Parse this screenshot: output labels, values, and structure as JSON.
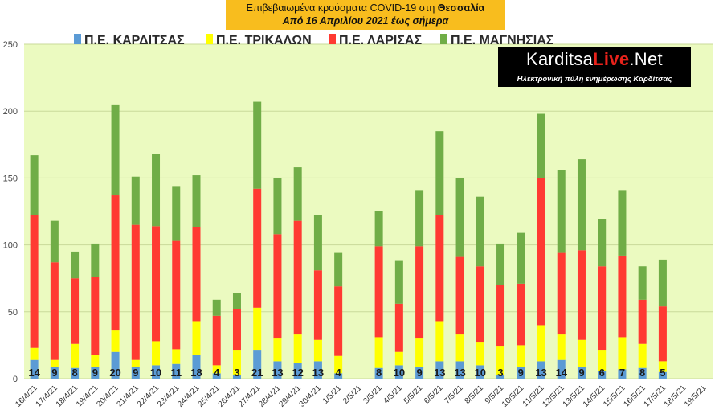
{
  "title": {
    "line1_prefix": "Επιβεβαιωμένα κρούσματα COVID-19 στη",
    "line1_region": "Θεσσαλία",
    "line2": "Από 16 Απριλίου 2021 έως σήμερα"
  },
  "logo": {
    "brand_a": "Karditsa",
    "brand_b": "Live",
    "brand_c": ".Net",
    "tagline": "Ηλεκτρονική πύλη ενημέρωσης Καρδίτσας"
  },
  "colors": {
    "plot_bg": "#ebfac0",
    "grid": "#c9d99a",
    "kardits": "#5b9bd5",
    "trikala": "#ffff00",
    "larisa": "#ff3a32",
    "magnisia": "#70ad47"
  },
  "chart_data": {
    "type": "bar",
    "stacked": true,
    "ylim": [
      0,
      250
    ],
    "yticks": [
      0,
      50,
      100,
      150,
      200,
      250
    ],
    "grid": true,
    "legend": "top",
    "categories": [
      "16/4/21",
      "17/4/21",
      "18/4/21",
      "19/4/21",
      "20/4/21",
      "21/4/21",
      "22/4/21",
      "23/4/21",
      "24/4/21",
      "25/4/21",
      "26/4/21",
      "27/4/21",
      "28/4/21",
      "29/4/21",
      "30/4/21",
      "1/5/21",
      "2/5/21",
      "3/5/21",
      "4/5/21",
      "5/5/21",
      "6/5/21",
      "7/5/21",
      "8/5/21",
      "9/5/21",
      "10/5/21",
      "11/5/21",
      "12/5/21",
      "13/5/21",
      "14/5/21",
      "15/5/21",
      "16/5/21",
      "17/5/21",
      "18/5/21",
      "19/5/21"
    ],
    "series": [
      {
        "name": "Π.Ε. ΚΑΡΔΙΤΣΑΣ",
        "color": "#5b9bd5",
        "values": [
          14,
          9,
          8,
          9,
          20,
          9,
          10,
          11,
          18,
          4,
          3,
          21,
          13,
          12,
          13,
          4,
          0,
          8,
          10,
          9,
          13,
          13,
          10,
          3,
          9,
          13,
          14,
          9,
          6,
          7,
          8,
          5,
          0,
          0
        ]
      },
      {
        "name": "Π.Ε. ΤΡΙΚΑΛΩΝ",
        "color": "#ffff00",
        "values": [
          9,
          5,
          18,
          9,
          16,
          5,
          18,
          11,
          25,
          6,
          18,
          32,
          17,
          21,
          16,
          13,
          0,
          23,
          10,
          21,
          30,
          20,
          17,
          21,
          16,
          27,
          19,
          20,
          15,
          24,
          18,
          8,
          0,
          0
        ]
      },
      {
        "name": "Π.Ε. ΛΑΡΙΣΑΣ",
        "color": "#ff3a32",
        "values": [
          99,
          73,
          49,
          58,
          101,
          101,
          86,
          81,
          70,
          37,
          31,
          89,
          78,
          85,
          52,
          52,
          0,
          68,
          36,
          69,
          79,
          58,
          57,
          46,
          46,
          110,
          61,
          67,
          63,
          61,
          33,
          41,
          0,
          0
        ]
      },
      {
        "name": "Π.Ε. ΜΑΓΝΗΣΙΑΣ",
        "color": "#70ad47",
        "values": [
          45,
          31,
          20,
          25,
          68,
          36,
          54,
          41,
          39,
          12,
          12,
          65,
          42,
          40,
          41,
          25,
          0,
          26,
          32,
          42,
          63,
          59,
          52,
          31,
          38,
          48,
          62,
          68,
          35,
          49,
          25,
          35,
          0,
          0
        ]
      }
    ],
    "data_labels": [
      "14",
      "9",
      "8",
      "9",
      "20",
      "9",
      "10",
      "11",
      "18",
      "4",
      "3",
      "21",
      "13",
      "12",
      "13",
      "4",
      "",
      "8",
      "10",
      "9",
      "13",
      "13",
      "10",
      "3",
      "9",
      "13",
      "14",
      "9",
      "6",
      "7",
      "8",
      "5",
      "",
      ""
    ]
  }
}
